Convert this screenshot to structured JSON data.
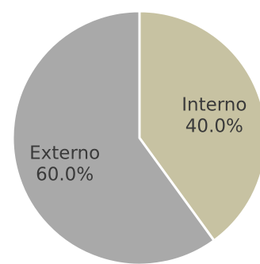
{
  "chart_data": {
    "type": "pie",
    "slices": [
      {
        "label": "Interno",
        "percent_label": "40.0%",
        "value": 40.0,
        "color": "#c7c2a2"
      },
      {
        "label": "Externo",
        "percent_label": "60.0%",
        "value": 60.0,
        "color": "#a9a9a9"
      }
    ],
    "start_angle_deg": 0,
    "direction": "clockwise",
    "slice_border_color": "#ffffff"
  }
}
